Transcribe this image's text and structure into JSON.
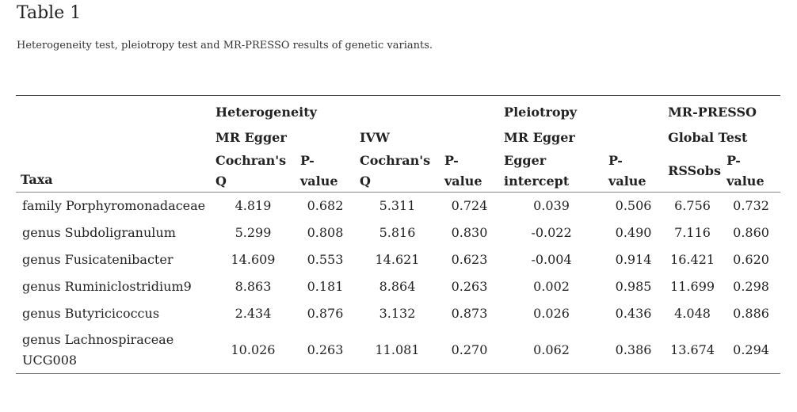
{
  "title": "Table 1",
  "caption": "Heterogeneity test, pleiotropy test and MR-PRESSO results of genetic variants.",
  "header": {
    "taxa": "Taxa",
    "heterogeneity": "Heterogeneity",
    "pleiotropy": "Pleiotropy",
    "mrpresso": "MR-PRESSO",
    "mr_egger_1": "MR Egger",
    "ivw": "IVW",
    "mr_egger_2": "MR Egger",
    "global_test": "Global Test",
    "cochrans_q_1": "Cochran's Q",
    "p_value_1": "P-value",
    "cochrans_q_2": "Cochran's Q",
    "p_value_2": "P-value",
    "egger_intercept": "Egger intercept",
    "p_value_3": "P-value",
    "rssobs": "RSSobs",
    "p_value_4": "P-value"
  },
  "rows": [
    {
      "taxa": "family Porphyromonadaceae",
      "egger_q": "4.819",
      "egger_p": "0.682",
      "ivw_q": "5.311",
      "ivw_p": "0.724",
      "intercept": "0.039",
      "pleio_p": "0.506",
      "rss": "6.756",
      "presso_p": "0.732"
    },
    {
      "taxa": "genus Subdoligranulum",
      "egger_q": "5.299",
      "egger_p": "0.808",
      "ivw_q": "5.816",
      "ivw_p": "0.830",
      "intercept": "-0.022",
      "pleio_p": "0.490",
      "rss": "7.116",
      "presso_p": "0.860"
    },
    {
      "taxa": "genus Fusicatenibacter",
      "egger_q": "14.609",
      "egger_p": "0.553",
      "ivw_q": "14.621",
      "ivw_p": "0.623",
      "intercept": "-0.004",
      "pleio_p": "0.914",
      "rss": "16.421",
      "presso_p": "0.620"
    },
    {
      "taxa": "genus Ruminiclostridium9",
      "egger_q": "8.863",
      "egger_p": "0.181",
      "ivw_q": "8.864",
      "ivw_p": "0.263",
      "intercept": "0.002",
      "pleio_p": "0.985",
      "rss": "11.699",
      "presso_p": "0.298"
    },
    {
      "taxa": "genus Butyricicoccus",
      "egger_q": "2.434",
      "egger_p": "0.876",
      "ivw_q": "3.132",
      "ivw_p": "0.873",
      "intercept": "0.026",
      "pleio_p": "0.436",
      "rss": "4.048",
      "presso_p": "0.886"
    },
    {
      "taxa": "genus Lachnospiraceae UCG008",
      "egger_q": "10.026",
      "egger_p": "0.263",
      "ivw_q": "11.081",
      "ivw_p": "0.270",
      "intercept": "0.062",
      "pleio_p": "0.386",
      "rss": "13.674",
      "presso_p": "0.294"
    }
  ]
}
